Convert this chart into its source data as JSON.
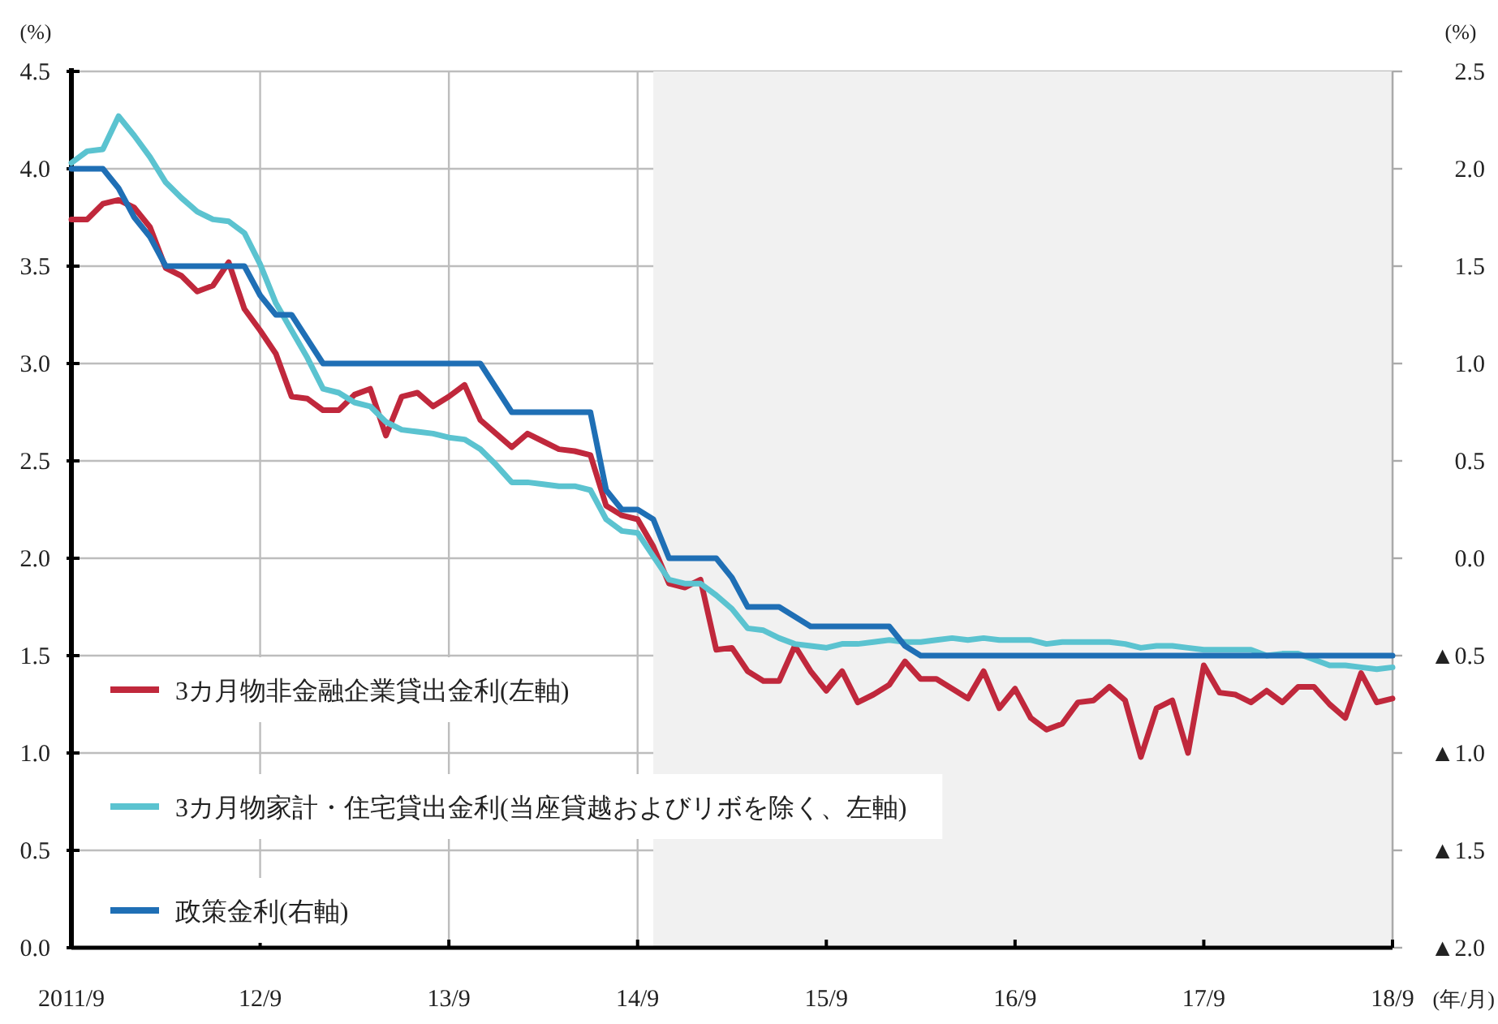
{
  "chart_data": {
    "type": "line",
    "xlabel": "(年/月)",
    "ylabel": "(%)",
    "y2label": "(%)",
    "x": [
      "2011-09",
      "2011-10",
      "2011-11",
      "2011-12",
      "2012-01",
      "2012-02",
      "2012-03",
      "2012-04",
      "2012-05",
      "2012-06",
      "2012-07",
      "2012-08",
      "2012-09",
      "2012-10",
      "2012-11",
      "2012-12",
      "2013-01",
      "2013-02",
      "2013-03",
      "2013-04",
      "2013-05",
      "2013-06",
      "2013-07",
      "2013-08",
      "2013-09",
      "2013-10",
      "2013-11",
      "2013-12",
      "2014-01",
      "2014-02",
      "2014-03",
      "2014-04",
      "2014-05",
      "2014-06",
      "2014-07",
      "2014-08",
      "2014-09",
      "2014-10",
      "2014-11",
      "2014-12",
      "2015-01",
      "2015-02",
      "2015-03",
      "2015-04",
      "2015-05",
      "2015-06",
      "2015-07",
      "2015-08",
      "2015-09",
      "2015-10",
      "2015-11",
      "2015-12",
      "2016-01",
      "2016-02",
      "2016-03",
      "2016-04",
      "2016-05",
      "2016-06",
      "2016-07",
      "2016-08",
      "2016-09",
      "2016-10",
      "2016-11",
      "2016-12",
      "2017-01",
      "2017-02",
      "2017-03",
      "2017-04",
      "2017-05",
      "2017-06",
      "2017-07",
      "2017-08",
      "2017-09",
      "2017-10",
      "2017-11",
      "2017-12",
      "2018-01",
      "2018-02",
      "2018-03",
      "2018-04",
      "2018-05",
      "2018-06",
      "2018-07",
      "2018-08",
      "2018-09"
    ],
    "xlim": [
      "2011-09",
      "2018-09"
    ],
    "xticks": [
      {
        "value": "2011-09",
        "label": "2011/9"
      },
      {
        "value": "2012-09",
        "label": "12/9"
      },
      {
        "value": "2013-09",
        "label": "13/9"
      },
      {
        "value": "2014-09",
        "label": "14/9"
      },
      {
        "value": "2015-09",
        "label": "15/9"
      },
      {
        "value": "2016-09",
        "label": "16/9"
      },
      {
        "value": "2017-09",
        "label": "17/9"
      },
      {
        "value": "2018-09",
        "label": "18/9"
      }
    ],
    "ylim": [
      0,
      4.5
    ],
    "yticks": [
      {
        "value": 0,
        "label": "0.0"
      },
      {
        "value": 0.5,
        "label": "0.5"
      },
      {
        "value": 1,
        "label": "1.0"
      },
      {
        "value": 1.5,
        "label": "1.5"
      },
      {
        "value": 2,
        "label": "2.0"
      },
      {
        "value": 2.5,
        "label": "2.5"
      },
      {
        "value": 3,
        "label": "3.0"
      },
      {
        "value": 3.5,
        "label": "3.5"
      },
      {
        "value": 4,
        "label": "4.0"
      },
      {
        "value": 4.5,
        "label": "4.5"
      }
    ],
    "y2lim": [
      -2,
      2.5
    ],
    "y2ticks": [
      {
        "value": -2,
        "label": "▲2.0"
      },
      {
        "value": -1.5,
        "label": "▲1.5"
      },
      {
        "value": -1,
        "label": "▲1.0"
      },
      {
        "value": -0.5,
        "label": "▲0.5"
      },
      {
        "value": 0,
        "label": "0.0"
      },
      {
        "value": 0.5,
        "label": "0.5"
      },
      {
        "value": 1,
        "label": "1.0"
      },
      {
        "value": 1.5,
        "label": "1.5"
      },
      {
        "value": 2,
        "label": "2.0"
      },
      {
        "value": 2.5,
        "label": "2.5"
      }
    ],
    "grid": true,
    "legend": "bottom left",
    "bands": [
      {
        "axis": "x",
        "from": "2014-10",
        "to": "2018-09",
        "color": "#f1f1f1"
      }
    ],
    "series": [
      {
        "name": "3カ月物非金融企業貸出金利(左軸)",
        "color": "#c0283c",
        "values": [
          3.74,
          3.74,
          3.82,
          3.84,
          3.8,
          3.7,
          3.49,
          3.45,
          3.37,
          3.4,
          3.52,
          3.28,
          3.17,
          3.05,
          2.83,
          2.82,
          2.76,
          2.76,
          2.84,
          2.87,
          2.63,
          2.83,
          2.85,
          2.78,
          2.83,
          2.89,
          2.71,
          2.64,
          2.57,
          2.64,
          2.6,
          2.56,
          2.55,
          2.53,
          2.27,
          2.22,
          2.2,
          2.06,
          1.87,
          1.85,
          1.89,
          1.53,
          1.54,
          1.42,
          1.37,
          1.37,
          1.55,
          1.42,
          1.32,
          1.42,
          1.26,
          1.3,
          1.35,
          1.47,
          1.38,
          1.38,
          1.33,
          1.28,
          1.42,
          1.23,
          1.33,
          1.18,
          1.12,
          1.15,
          1.26,
          1.27,
          1.34,
          1.27,
          0.98,
          1.23,
          1.27,
          1.0,
          1.45,
          1.31,
          1.3,
          1.26,
          1.32,
          1.26,
          1.34,
          1.34,
          1.25,
          1.18,
          1.41,
          1.26,
          1.28
        ]
      },
      {
        "name": "3カ月物家計・住宅貸出金利(当座貸越およびリボを除く、左軸)",
        "color": "#5bc3d0",
        "values": [
          4.03,
          4.09,
          4.1,
          4.27,
          4.17,
          4.06,
          3.93,
          3.85,
          3.78,
          3.74,
          3.73,
          3.67,
          3.51,
          3.31,
          3.17,
          3.03,
          2.87,
          2.85,
          2.8,
          2.78,
          2.7,
          2.66,
          2.65,
          2.64,
          2.62,
          2.61,
          2.56,
          2.48,
          2.39,
          2.39,
          2.38,
          2.37,
          2.37,
          2.35,
          2.2,
          2.14,
          2.13,
          2.01,
          1.89,
          1.87,
          1.87,
          1.81,
          1.74,
          1.64,
          1.63,
          1.59,
          1.56,
          1.55,
          1.54,
          1.56,
          1.56,
          1.57,
          1.58,
          1.57,
          1.57,
          1.58,
          1.59,
          1.58,
          1.59,
          1.58,
          1.58,
          1.58,
          1.56,
          1.57,
          1.57,
          1.57,
          1.57,
          1.56,
          1.54,
          1.55,
          1.55,
          1.54,
          1.53,
          1.53,
          1.53,
          1.53,
          1.5,
          1.51,
          1.51,
          1.48,
          1.45,
          1.45,
          1.44,
          1.43,
          1.44
        ]
      },
      {
        "name": "政策金利(右軸)",
        "color": "#1f6fb5",
        "axis": "y2",
        "x": [
          "2011-09",
          "2011-11",
          "2011-12",
          "2012-01",
          "2012-02",
          "2012-03",
          "2012-08",
          "2012-09",
          "2012-10",
          "2012-11",
          "2013-01",
          "2013-11",
          "2014-01",
          "2014-06",
          "2014-07",
          "2014-08",
          "2014-09",
          "2014-10",
          "2014-11",
          "2015-02",
          "2015-03",
          "2015-04",
          "2015-06",
          "2015-07",
          "2015-08",
          "2016-01",
          "2016-02",
          "2016-03",
          "2018-09"
        ],
        "values": [
          2.0,
          2.0,
          1.9,
          1.75,
          1.65,
          1.5,
          1.5,
          1.35,
          1.25,
          1.25,
          1.0,
          1.0,
          0.75,
          0.75,
          0.35,
          0.25,
          0.25,
          0.2,
          0.0,
          0.0,
          -0.1,
          -0.25,
          -0.25,
          -0.3,
          -0.35,
          -0.35,
          -0.45,
          -0.5,
          -0.5
        ]
      }
    ]
  }
}
